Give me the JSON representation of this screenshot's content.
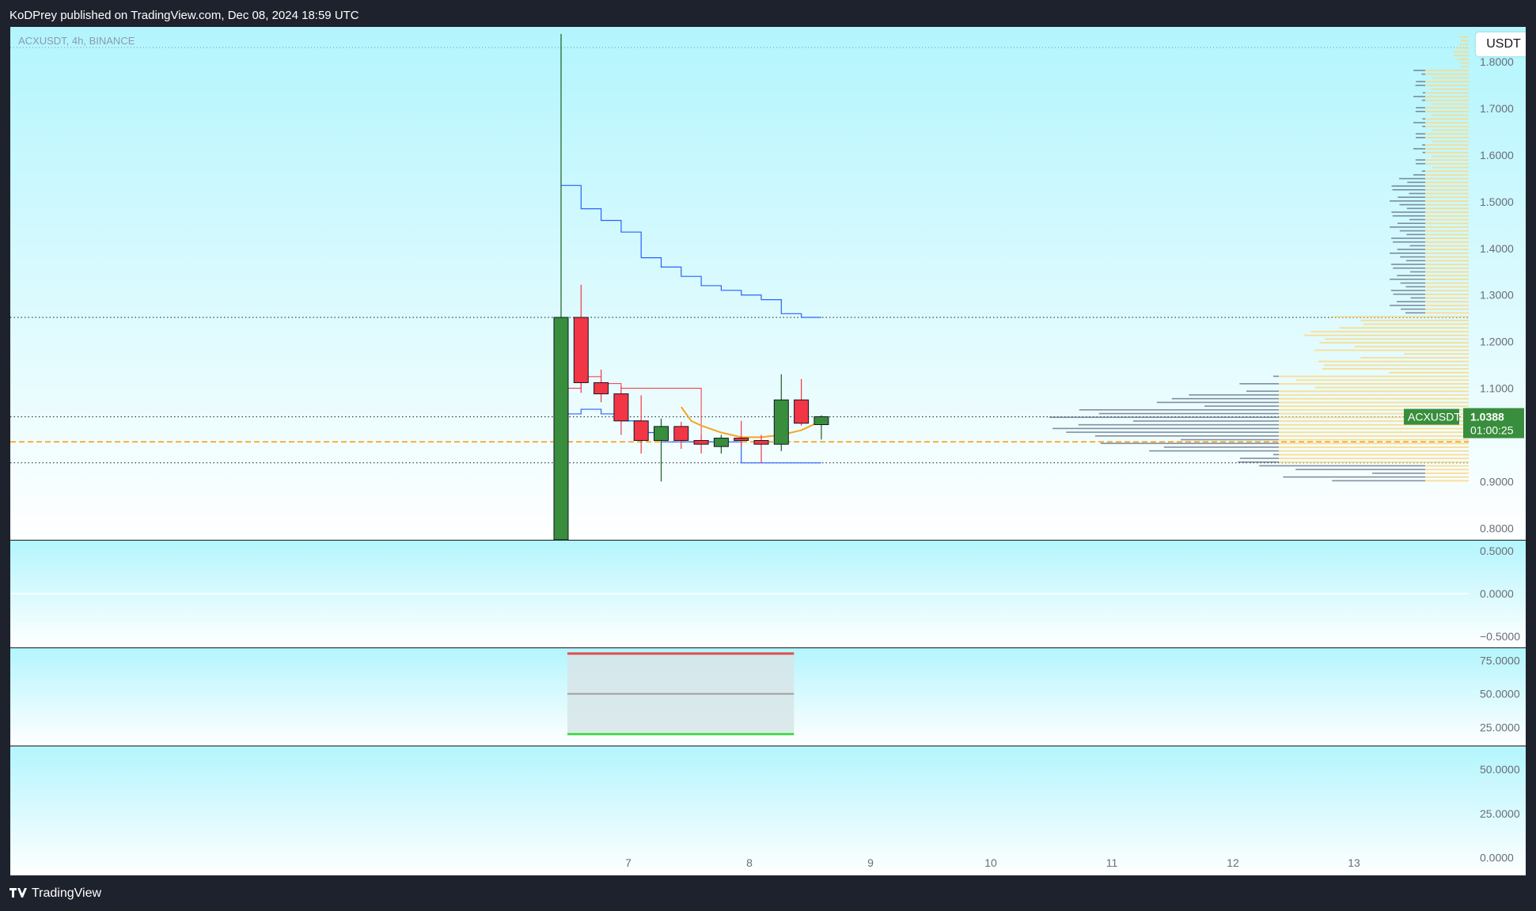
{
  "header": {
    "publish_line": "KoDPrey published on TradingView.com, Dec 08, 2024 18:59 UTC"
  },
  "chart": {
    "symbol_line": "ACXUSDT, 4h, BINANCE",
    "unit": "USDT",
    "price_tag_symbol": "ACXUSDT",
    "price_tag_value": "1.0388",
    "price_tag_countdown": "01:00:25",
    "x_ticks": [
      "7",
      "8",
      "9",
      "10",
      "11",
      "12",
      "13"
    ]
  },
  "colors": {
    "up": "#388e3c",
    "down": "#f23645",
    "bg_top": "#b3f5fd",
    "bg_bottom": "#ffffff",
    "vwap_blue": "#2962ff",
    "red_line": "#f23645",
    "orange_line": "#f5a623",
    "poc_dash": "#ff9800",
    "volume_profile_bar": "#5d6a82",
    "value_area": "#fbd98a"
  },
  "chart_data": {
    "type": "candlestick",
    "main_pane": {
      "y_ticks": [
        "1.8000",
        "1.7000",
        "1.6000",
        "1.5000",
        "1.4000",
        "1.3000",
        "1.2000",
        "1.1000",
        "0.9000",
        "0.8000"
      ],
      "ylim": [
        0.775,
        1.875
      ],
      "candles": [
        {
          "o": 0.775,
          "h": 1.86,
          "l": 0.775,
          "c": 1.252
        },
        {
          "o": 1.252,
          "h": 1.322,
          "l": 1.09,
          "c": 1.112
        },
        {
          "o": 1.112,
          "h": 1.14,
          "l": 1.07,
          "c": 1.088
        },
        {
          "o": 1.088,
          "h": 1.105,
          "l": 1.0,
          "c": 1.03
        },
        {
          "o": 1.03,
          "h": 1.085,
          "l": 0.96,
          "c": 0.988
        },
        {
          "o": 0.988,
          "h": 1.035,
          "l": 0.9,
          "c": 1.018
        },
        {
          "o": 1.018,
          "h": 1.028,
          "l": 0.97,
          "c": 0.988
        },
        {
          "o": 0.988,
          "h": 1.0,
          "l": 0.96,
          "c": 0.98
        },
        {
          "o": 0.975,
          "h": 1.0,
          "l": 0.96,
          "c": 0.993
        },
        {
          "o": 0.993,
          "h": 1.03,
          "l": 0.975,
          "c": 0.988
        },
        {
          "o": 0.988,
          "h": 1.0,
          "l": 0.94,
          "c": 0.98
        },
        {
          "o": 0.98,
          "h": 1.13,
          "l": 0.965,
          "c": 1.075
        },
        {
          "o": 1.075,
          "h": 1.12,
          "l": 1.02,
          "c": 1.025
        },
        {
          "o": 1.022,
          "h": 1.042,
          "l": 0.99,
          "c": 1.039
        }
      ],
      "last_price": 1.0388,
      "poc_price": 0.985,
      "horizontal_levels": [
        1.252,
        1.0388,
        0.94
      ]
    },
    "pane2": {
      "y_ticks": [
        "0.5000",
        "0.0000",
        "−0.5000"
      ],
      "ylim": [
        -0.62,
        0.62
      ]
    },
    "pane3": {
      "y_ticks": [
        "75.0000",
        "50.0000",
        "25.0000"
      ],
      "ylim": [
        12,
        84
      ],
      "bands": {
        "upper": 80,
        "middle": 50,
        "lower": 20
      }
    },
    "pane4": {
      "y_ticks": [
        "50.0000",
        "25.0000",
        "0.0000"
      ],
      "ylim": [
        -10,
        63
      ]
    }
  }
}
